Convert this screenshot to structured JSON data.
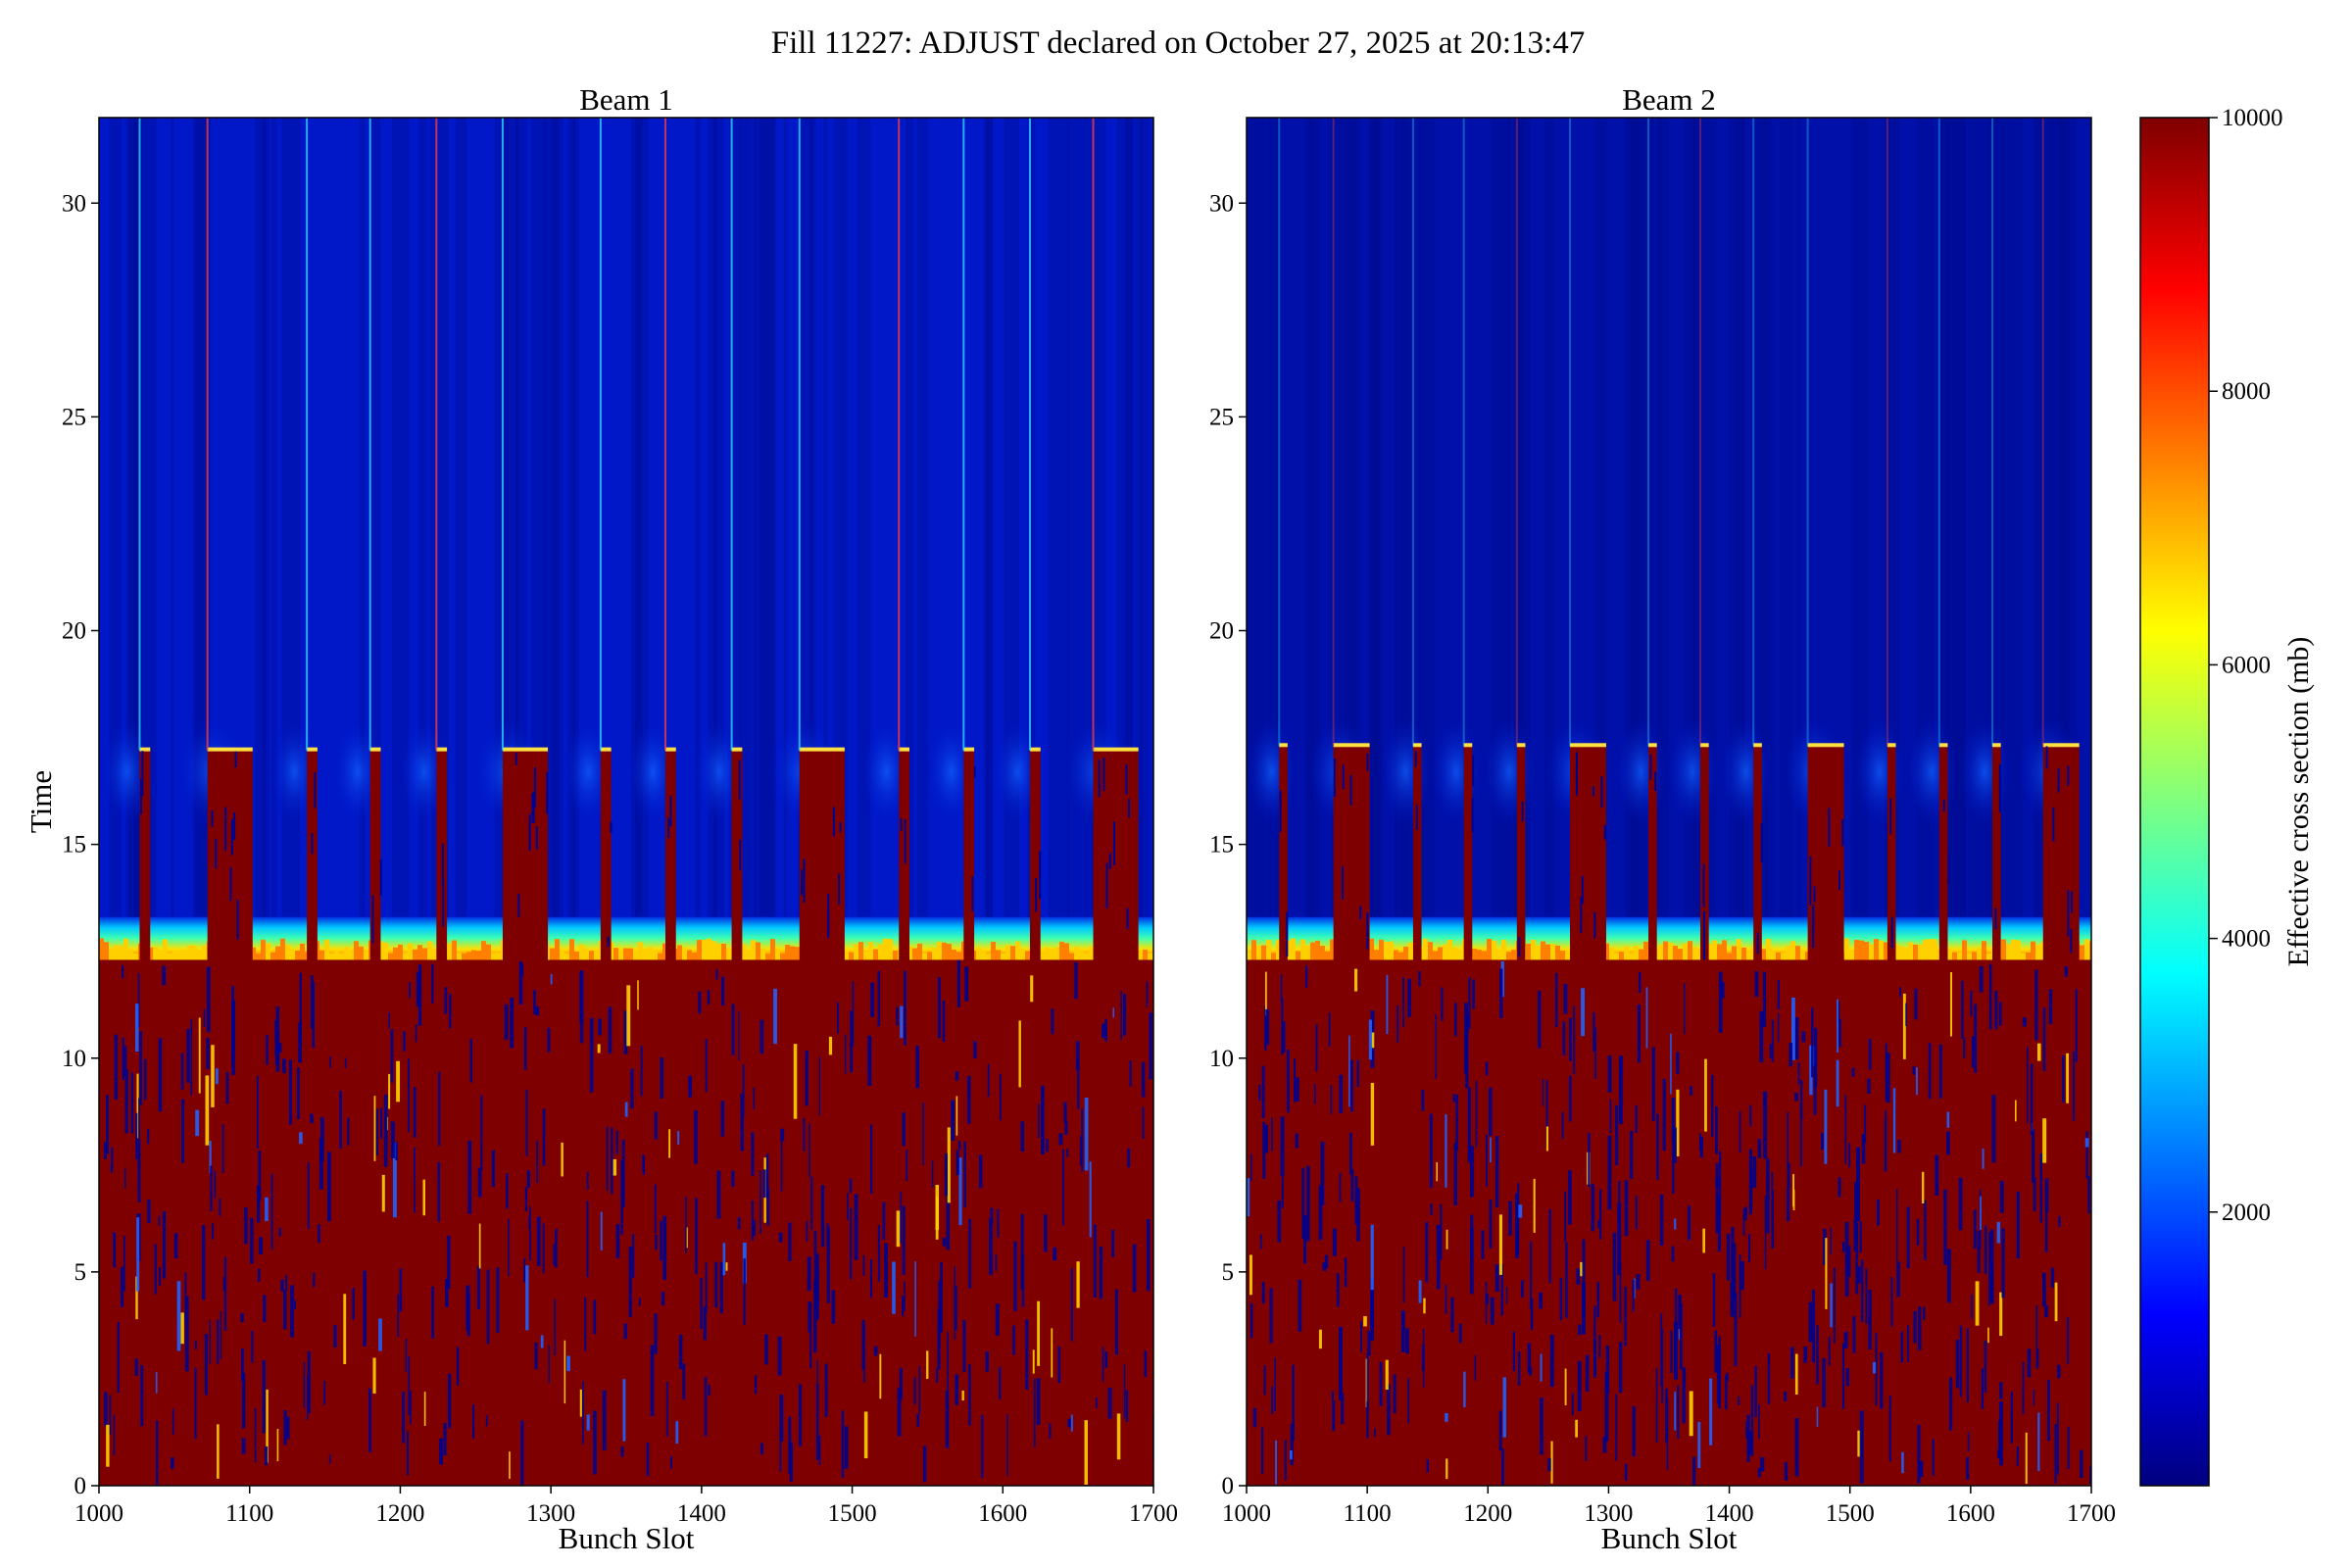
{
  "title": "Fill 11227: ADJUST declared on October 27, 2025 at 20:13:47",
  "chart_data": [
    {
      "type": "heatmap",
      "title": "Beam 1",
      "xlabel": "Bunch Slot",
      "ylabel": "Time",
      "xlim": [
        1000,
        1700
      ],
      "ylim": [
        0,
        32
      ],
      "xticks": [
        1000,
        1100,
        1200,
        1300,
        1400,
        1500,
        1600,
        1700
      ],
      "yticks": [
        0,
        5,
        10,
        15,
        20,
        25,
        30
      ],
      "colormap": "jet",
      "z_range": [
        0,
        10000
      ],
      "train_starts": [
        1027,
        1072,
        1138,
        1180,
        1224,
        1268,
        1333,
        1376,
        1420,
        1465,
        1531,
        1574,
        1618,
        1660
      ],
      "train_ends": [
        1034,
        1102,
        1145,
        1187,
        1231,
        1298,
        1340,
        1383,
        1427,
        1495,
        1538,
        1581,
        1625,
        1690
      ],
      "bands": [
        {
          "t_from": 0,
          "t_to": 12.3,
          "value": 10000,
          "note": "saturated with scattered low values"
        },
        {
          "t_from": 12.3,
          "t_to": 13.3,
          "value": 5000,
          "note": "transition between bunch trains"
        },
        {
          "t_from": 13.3,
          "t_to": 17.2,
          "value": 10000,
          "note": "within bunch trains only"
        },
        {
          "t_from": 13.3,
          "t_to": 32,
          "value": 500,
          "note": "background"
        }
      ]
    },
    {
      "type": "heatmap",
      "title": "Beam 2",
      "xlabel": "Bunch Slot",
      "ylabel": "",
      "xlim": [
        1000,
        1700
      ],
      "ylim": [
        0,
        32
      ],
      "xticks": [
        1000,
        1100,
        1200,
        1300,
        1400,
        1500,
        1600,
        1700
      ],
      "yticks": [
        0,
        5,
        10,
        15,
        20,
        25,
        30
      ],
      "colormap": "jet",
      "z_range": [
        0,
        10000
      ],
      "train_starts": [
        1027,
        1072,
        1138,
        1180,
        1224,
        1268,
        1333,
        1376,
        1420,
        1465,
        1531,
        1574,
        1618,
        1660
      ],
      "train_ends": [
        1034,
        1102,
        1145,
        1187,
        1231,
        1298,
        1340,
        1383,
        1427,
        1495,
        1538,
        1581,
        1625,
        1690
      ],
      "bands": [
        {
          "t_from": 0,
          "t_to": 12.3,
          "value": 10000,
          "note": "saturated with scattered low values"
        },
        {
          "t_from": 12.3,
          "t_to": 13.3,
          "value": 5000,
          "note": "transition between bunch trains"
        },
        {
          "t_from": 13.3,
          "t_to": 17.3,
          "value": 10000,
          "note": "within bunch trains only"
        },
        {
          "t_from": 13.3,
          "t_to": 32,
          "value": 300,
          "note": "background"
        }
      ]
    }
  ],
  "colorbar": {
    "label": "Effective cross section (mb)",
    "ticks": [
      2000,
      4000,
      6000,
      8000,
      10000
    ],
    "range": [
      0,
      10000
    ],
    "colors": [
      "#00007f",
      "#0000ff",
      "#007fff",
      "#00ffff",
      "#7fff7f",
      "#ffff00",
      "#ff7f00",
      "#ff0000",
      "#7f0000"
    ]
  }
}
